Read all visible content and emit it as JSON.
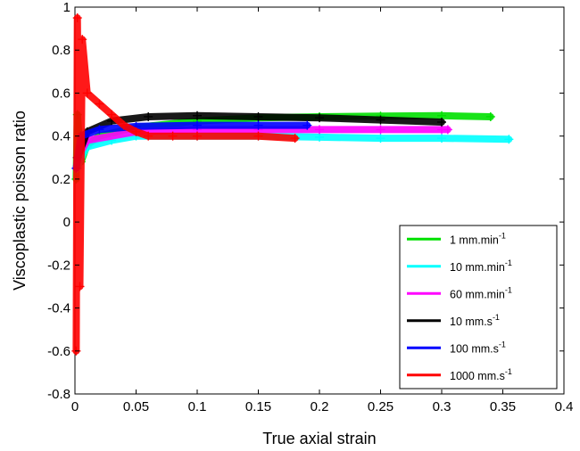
{
  "chart_data": {
    "type": "scatter",
    "xlabel": "True axial strain",
    "ylabel": "Viscoplastic poisson ratio",
    "xlim": [
      0,
      0.4
    ],
    "ylim": [
      -0.8,
      1
    ],
    "x_ticks": [
      "0",
      "0.05",
      "0.1",
      "0.15",
      "0.2",
      "0.25",
      "0.3",
      "0.35",
      "0.4"
    ],
    "y_ticks": [
      "-0.8",
      "-0.6",
      "-0.4",
      "-0.2",
      "0",
      "0.2",
      "0.4",
      "0.6",
      "0.8",
      "1"
    ],
    "grid": false,
    "legend_position": "bottom-right",
    "marker": "+",
    "series": [
      {
        "name": "1 mm.min",
        "unit_exponent": "-1",
        "color": "#00e000",
        "points": [
          [
            0.001,
            0.2
          ],
          [
            0.002,
            0.5
          ],
          [
            0.005,
            0.28
          ],
          [
            0.01,
            0.36
          ],
          [
            0.02,
            0.4
          ],
          [
            0.05,
            0.44
          ],
          [
            0.1,
            0.47
          ],
          [
            0.15,
            0.485
          ],
          [
            0.2,
            0.49
          ],
          [
            0.25,
            0.493
          ],
          [
            0.3,
            0.495
          ],
          [
            0.34,
            0.49
          ]
        ]
      },
      {
        "name": "10 mm.min",
        "unit_exponent": "-1",
        "color": "#00ffff",
        "points": [
          [
            0.002,
            0.25
          ],
          [
            0.005,
            0.3
          ],
          [
            0.01,
            0.35
          ],
          [
            0.03,
            0.38
          ],
          [
            0.05,
            0.4
          ],
          [
            0.1,
            0.4
          ],
          [
            0.15,
            0.4
          ],
          [
            0.2,
            0.395
          ],
          [
            0.25,
            0.39
          ],
          [
            0.3,
            0.39
          ],
          [
            0.355,
            0.385
          ]
        ]
      },
      {
        "name": "60 mm.min",
        "unit_exponent": "-1",
        "color": "#ff00ff",
        "points": [
          [
            0.002,
            0.3
          ],
          [
            0.01,
            0.38
          ],
          [
            0.05,
            0.42
          ],
          [
            0.1,
            0.43
          ],
          [
            0.15,
            0.43
          ],
          [
            0.2,
            0.43
          ],
          [
            0.25,
            0.43
          ],
          [
            0.3,
            0.43
          ],
          [
            0.305,
            0.43
          ]
        ]
      },
      {
        "name": "10 mm.s",
        "unit_exponent": "-1",
        "color": "#000000",
        "points": [
          [
            0.002,
            0.3
          ],
          [
            0.01,
            0.42
          ],
          [
            0.03,
            0.47
          ],
          [
            0.06,
            0.49
          ],
          [
            0.1,
            0.495
          ],
          [
            0.15,
            0.49
          ],
          [
            0.2,
            0.485
          ],
          [
            0.25,
            0.475
          ],
          [
            0.3,
            0.465
          ]
        ]
      },
      {
        "name": "100 mm.s",
        "unit_exponent": "-1",
        "color": "#0000ff",
        "points": [
          [
            0.001,
            0.25
          ],
          [
            0.005,
            0.4
          ],
          [
            0.02,
            0.43
          ],
          [
            0.05,
            0.445
          ],
          [
            0.1,
            0.45
          ],
          [
            0.15,
            0.45
          ],
          [
            0.19,
            0.45
          ]
        ]
      },
      {
        "name": "1000 mm.s",
        "unit_exponent": "-1",
        "color": "#ff0000",
        "points": [
          [
            0.001,
            -0.6
          ],
          [
            0.002,
            0.95
          ],
          [
            0.004,
            -0.3
          ],
          [
            0.006,
            0.85
          ],
          [
            0.01,
            0.6
          ],
          [
            0.02,
            0.55
          ],
          [
            0.03,
            0.5
          ],
          [
            0.04,
            0.45
          ],
          [
            0.05,
            0.42
          ],
          [
            0.06,
            0.4
          ],
          [
            0.08,
            0.4
          ],
          [
            0.1,
            0.4
          ],
          [
            0.15,
            0.4
          ],
          [
            0.18,
            0.39
          ]
        ]
      }
    ]
  }
}
